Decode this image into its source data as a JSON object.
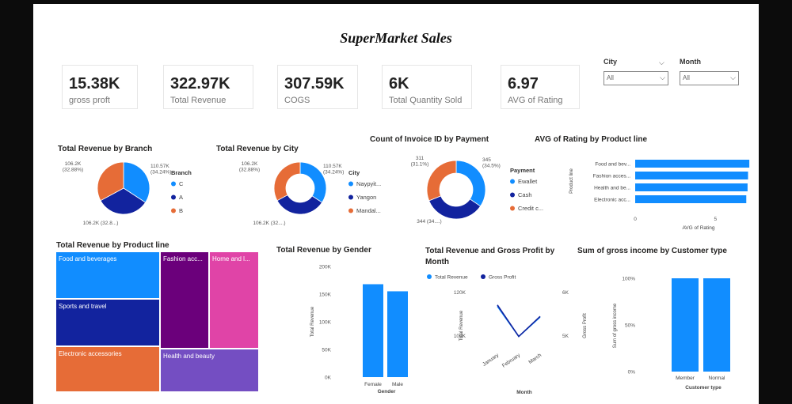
{
  "dashboard": {
    "title": "SuperMarket  Sales"
  },
  "kpis": [
    {
      "value": "15.38K",
      "label": "gross proft"
    },
    {
      "value": "322.97K",
      "label": "Total Revenue"
    },
    {
      "value": "307.59K",
      "label": "COGS"
    },
    {
      "value": "6K",
      "label": "Total Quantity Sold"
    },
    {
      "value": "6.97",
      "label": "AVG of Rating"
    }
  ],
  "slicers": [
    {
      "label": "City",
      "value": "All"
    },
    {
      "label": "Month",
      "value": "All"
    }
  ],
  "colors": {
    "blue": "#118DFF",
    "navy": "#12239E",
    "orange": "#E66C37",
    "purple": "#6B007B",
    "pink": "#E044A7",
    "violet": "#744EC2"
  },
  "chart_data": [
    {
      "id": "branch",
      "type": "pie",
      "title": "Total Revenue by Branch",
      "legend_title": "Branch",
      "legend": "right",
      "slices": [
        {
          "name": "C",
          "value": 110.57,
          "label": "110.57K\n(34.24%)",
          "color": "#118DFF"
        },
        {
          "name": "A",
          "value": 106.2,
          "label": "106.2K (32.8...)",
          "color": "#12239E"
        },
        {
          "name": "B",
          "value": 106.2,
          "label": "106.2K\n(32.88%)",
          "color": "#E66C37"
        }
      ]
    },
    {
      "id": "city",
      "type": "pie",
      "donut": true,
      "title": "Total Revenue by City",
      "legend_title": "City",
      "legend": "right",
      "slices": [
        {
          "name": "Naypyit...",
          "value": 110.57,
          "label": "110.57K\n(34.24%)",
          "color": "#118DFF"
        },
        {
          "name": "Yangon",
          "value": 106.2,
          "label": "106.2K (32....)",
          "color": "#12239E"
        },
        {
          "name": "Mandal...",
          "value": 106.2,
          "label": "106.2K\n(32.88%)",
          "color": "#E66C37"
        }
      ]
    },
    {
      "id": "payment",
      "type": "pie",
      "donut": true,
      "title": "Count of Invoice ID by Payment",
      "legend_title": "Payment",
      "legend": "right",
      "slices": [
        {
          "name": "Ewallet",
          "value": 345,
          "label": "345\n(34.5%)",
          "color": "#118DFF"
        },
        {
          "name": "Cash",
          "value": 344,
          "label": "344 (34....)",
          "color": "#12239E"
        },
        {
          "name": "Credit c...",
          "value": 311,
          "label": "311\n(31.1%)",
          "color": "#E66C37"
        }
      ]
    },
    {
      "id": "rating",
      "type": "bar",
      "orientation": "horizontal",
      "title": "AVG of Rating by Product line",
      "categories": [
        "Food and bev...",
        "Fashion acces...",
        "Health and be...",
        "Electronic acc..."
      ],
      "values": [
        7.11,
        7.03,
        7.0,
        6.92
      ],
      "xlabel": "AVG of Rating",
      "ylabel": "Product line",
      "xlim": [
        0,
        7.4
      ],
      "xticks": [
        "0",
        "5"
      ]
    },
    {
      "id": "treemap",
      "type": "treemap",
      "title": "Total Revenue by Product line",
      "items": [
        {
          "name": "Food and beverages",
          "color": "#118DFF"
        },
        {
          "name": "Sports and travel",
          "color": "#12239E"
        },
        {
          "name": "Electronic accessories",
          "color": "#E66C37"
        },
        {
          "name": "Fashion acc...",
          "color": "#6B007B"
        },
        {
          "name": "Home and l...",
          "color": "#E044A7"
        },
        {
          "name": "Health and beauty",
          "color": "#744EC2"
        }
      ]
    },
    {
      "id": "gender",
      "type": "bar",
      "title": "Total Revenue by Gender",
      "categories": [
        "Female",
        "Male"
      ],
      "values": [
        167.88,
        155.08
      ],
      "xlabel": "Gender",
      "ylabel": "Total Revenue",
      "ylim": [
        0,
        200
      ],
      "yticks": [
        "0K",
        "50K",
        "100K",
        "150K",
        "200K"
      ]
    },
    {
      "id": "month",
      "type": "line",
      "title": "Total Revenue and Gross Profit by Month",
      "categories": [
        "January",
        "February",
        "March"
      ],
      "series": [
        {
          "name": "Total Revenue",
          "values": [
            116.29,
            97.22,
            109.46
          ],
          "axis": "left",
          "color": "#118DFF"
        },
        {
          "name": "Gross Profit",
          "values": [
            5.54,
            4.63,
            5.21
          ],
          "axis": "right",
          "color": "#12239E"
        }
      ],
      "xlabel": "Month",
      "ylabel": "Total Revenue",
      "y2label": "Gross Profit",
      "yticks": [
        "100K",
        "120K"
      ],
      "y2ticks": [
        "5K",
        "6K"
      ]
    },
    {
      "id": "customer",
      "type": "bar",
      "title": "Sum of gross income by Customer type",
      "categories": [
        "Member",
        "Normal"
      ],
      "values": [
        100,
        100
      ],
      "xlabel": "Customer type",
      "ylabel": "Sum of gross income",
      "ylim": [
        0,
        100
      ],
      "yticks": [
        "0%",
        "50%",
        "100%"
      ]
    }
  ]
}
